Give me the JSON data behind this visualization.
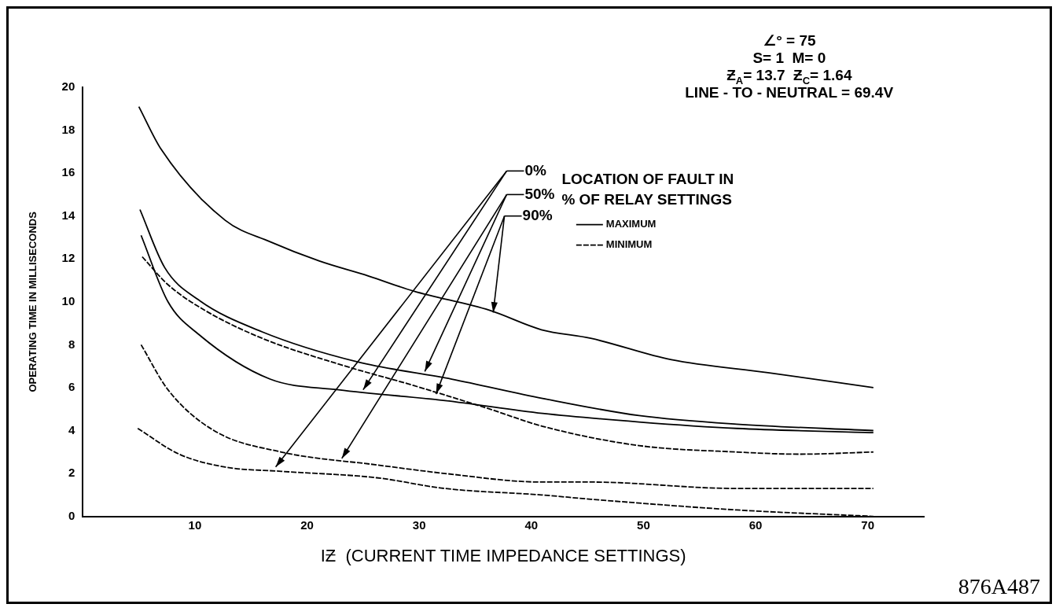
{
  "chart_data": {
    "type": "line",
    "ylabel": "OPERATING TIME IN MILLISECONDS",
    "xlabel": "IƵ  (CURRENT TIME IMPEDANCE SETTINGS)",
    "xlim": [
      0,
      75
    ],
    "xticks": [
      10,
      20,
      30,
      40,
      50,
      60,
      70
    ],
    "ylim": [
      0,
      20
    ],
    "yticks": [
      0,
      2,
      4,
      6,
      8,
      10,
      12,
      14,
      16,
      18,
      20
    ],
    "grid": false,
    "legend": "top right",
    "marker": "none",
    "series": [
      {
        "name": "MAXIMUM",
        "color": "#000000",
        "line_style": "solid",
        "x": [
          5,
          7,
          12.7,
          16.7,
          21.1,
          25.5,
          29.5,
          36.3,
          40.9,
          45.3,
          52.5,
          61.1,
          70.5
        ],
        "values": [
          19.1,
          17.1,
          13.8,
          12.8,
          11.9,
          11.2,
          10.5,
          9.6,
          8.7,
          8.3,
          7.3,
          6.7,
          6.0
        ]
      },
      {
        "color": "#000000",
        "line_style": "solid",
        "x": [
          5.1,
          7.3,
          10.3,
          16,
          24.5,
          32.9,
          41,
          49.6,
          58.3,
          70.5
        ],
        "values": [
          14.3,
          11.6,
          10.1,
          8.6,
          7.2,
          6.4,
          5.5,
          4.7,
          4.3,
          4.0
        ]
      },
      {
        "color": "#000000",
        "line_style": "solid",
        "x": [
          5.2,
          7.6,
          10.3,
          16.7,
          22.8,
          32.3,
          41,
          49.6,
          58.3,
          70.5
        ],
        "values": [
          13.1,
          10.0,
          8.5,
          6.4,
          5.9,
          5.4,
          4.8,
          4.4,
          4.1,
          3.9
        ]
      },
      {
        "name": "MINIMUM",
        "color": "#000000",
        "line_style": "dashed",
        "x": [
          5.3,
          7.6,
          10.9,
          16,
          22.8,
          29.5,
          36.3,
          41,
          49.6,
          58.3,
          64,
          70.5
        ],
        "values": [
          12.1,
          10.8,
          9.6,
          8.3,
          7.1,
          6.1,
          5.0,
          4.2,
          3.3,
          3.0,
          2.9,
          3.0
        ]
      },
      {
        "color": "#000000",
        "line_style": "dashed",
        "x": [
          5.2,
          7.6,
          11.7,
          17.7,
          26.2,
          32.3,
          40.9,
          45.3,
          58.3,
          70.5
        ],
        "values": [
          8.0,
          5.9,
          4.0,
          3.0,
          2.4,
          2.0,
          1.6,
          1.6,
          1.3,
          1.3
        ]
      },
      {
        "color": "#000000",
        "line_style": "dashed",
        "x": [
          4.9,
          8.6,
          12.7,
          17.7,
          26.2,
          32.3,
          40.9,
          45.3,
          58.3,
          70.5
        ],
        "values": [
          4.1,
          2.9,
          2.3,
          2.1,
          1.8,
          1.3,
          1.0,
          0.8,
          0.3,
          0
        ]
      }
    ],
    "annotations": [
      "∠° = 75",
      "S= 1  M= 0",
      "Ƶ$_{A}$= 13.7  Ƶ$_{C}$= 1.64",
      "LINE - TO - NEUTRAL = 69.4V",
      {
        "text": "0%",
        "x": 17.2,
        "y": 2.3
      },
      {
        "text": "50%",
        "x": 23.1,
        "y": 2.7
      },
      {
        "text": "90%",
        "x": 31.5,
        "y": 5.7
      },
      "LOCATION OF FAULT IN\n% OF RELAY SETTINGS",
      "876A487"
    ]
  }
}
